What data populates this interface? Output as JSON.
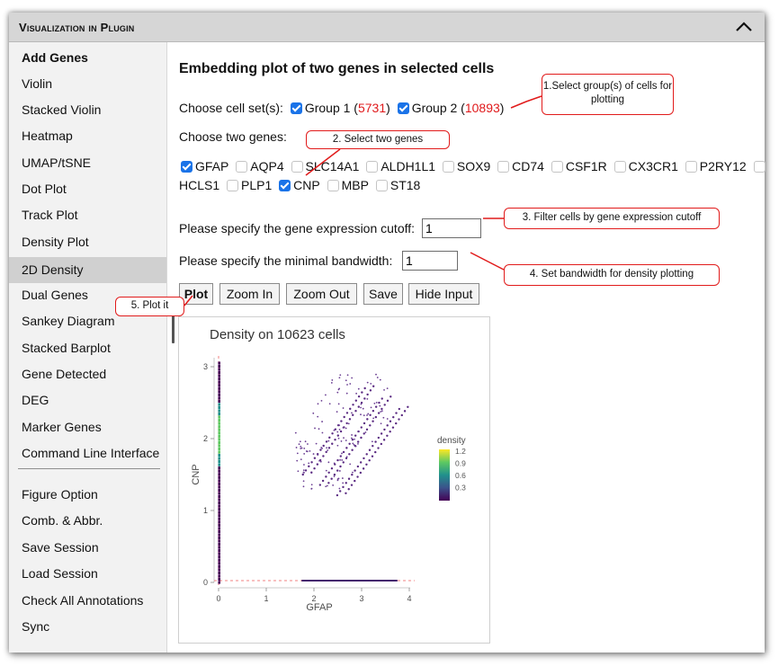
{
  "header": {
    "title": "Visualization in Plugin"
  },
  "sidebar": {
    "items": [
      {
        "label": "Add Genes"
      },
      {
        "label": "Violin"
      },
      {
        "label": "Stacked Violin"
      },
      {
        "label": "Heatmap"
      },
      {
        "label": "UMAP/tSNE"
      },
      {
        "label": "Dot Plot"
      },
      {
        "label": "Track Plot"
      },
      {
        "label": "Density Plot"
      },
      {
        "label": "2D Density"
      },
      {
        "label": "Dual Genes"
      },
      {
        "label": "Sankey Diagram"
      },
      {
        "label": "Stacked Barplot"
      },
      {
        "label": "Gene Detected"
      },
      {
        "label": "DEG"
      },
      {
        "label": "Marker Genes"
      },
      {
        "label": "Command Line Interface"
      },
      {
        "label": "Figure Option"
      },
      {
        "label": "Comb. & Abbr."
      },
      {
        "label": "Save Session"
      },
      {
        "label": "Load Session"
      },
      {
        "label": "Check All Annotations"
      },
      {
        "label": "Sync"
      }
    ],
    "active": "2D Density"
  },
  "main": {
    "title": "Embedding plot of two genes in selected cells",
    "cellset_label": "Choose cell set(s):",
    "groups": [
      {
        "name": "Group 1",
        "count": "5731",
        "checked": true
      },
      {
        "name": "Group 2",
        "count": "10893",
        "checked": true
      }
    ],
    "genes_label": "Choose two genes:",
    "genes_row1": [
      {
        "name": "GFAP",
        "checked": true
      },
      {
        "name": "AQP4",
        "checked": false
      },
      {
        "name": "SLC14A1",
        "checked": false
      },
      {
        "name": "ALDH1L1",
        "checked": false
      },
      {
        "name": "SOX9",
        "checked": false
      },
      {
        "name": "CD74",
        "checked": false
      },
      {
        "name": "CSF1R",
        "checked": false
      },
      {
        "name": "CX3CR1",
        "checked": false
      },
      {
        "name": "P2RY12",
        "checked": false
      }
    ],
    "genes_row2": [
      {
        "name": "HCLS1",
        "checked": false
      },
      {
        "name": "PLP1",
        "checked": false
      },
      {
        "name": "CNP",
        "checked": true
      },
      {
        "name": "MBP",
        "checked": false
      },
      {
        "name": "ST18",
        "checked": false
      }
    ],
    "cutoff_label": "Please specify the gene expression cutoff:",
    "cutoff_value": "1",
    "bandwidth_label": "Please specify the minimal bandwidth:",
    "bandwidth_value": "1",
    "buttons": {
      "plot": "Plot",
      "zoom_in": "Zoom In",
      "zoom_out": "Zoom Out",
      "save": "Save",
      "hide_input": "Hide Input"
    }
  },
  "chart_data": {
    "type": "scatter",
    "title": "Density on 10623 cells",
    "xlabel": "GFAP",
    "ylabel": "CNP",
    "xlim": [
      0,
      4
    ],
    "ylim": [
      0,
      3
    ],
    "x_ticks": [
      "0",
      "1",
      "2",
      "3",
      "4"
    ],
    "y_ticks": [
      "0",
      "1",
      "2",
      "3"
    ],
    "cutoff_lines": {
      "x": 0,
      "y": 0,
      "color": "#f08080",
      "style": "dashed"
    },
    "legend": {
      "title": "density",
      "ticks": [
        "1.2",
        "0.9",
        "0.6",
        "0.3"
      ],
      "colormap": "viridis",
      "placement": "right"
    },
    "series_description": "Cells concentrated along x=0 (CNP 0–3), along y=0 (GFAP 1.7–3.7), and a diagonal cloud at GFAP 1.6–3.6, CNP 1.3–2.9",
    "grid": false
  },
  "callouts": {
    "c1": "1.Select group(s) of cells for plotting",
    "c2": "2. Select two genes",
    "c3": "3. Filter cells by gene expression cutoff",
    "c4": "4. Set bandwidth for density plotting",
    "c5": "5. Plot it"
  },
  "colors": {
    "accent_checkbox": "#1a73e8",
    "count_red": "#e0191b",
    "callout_red": "#e11b1b",
    "header_bg": "#d6d6d6"
  }
}
